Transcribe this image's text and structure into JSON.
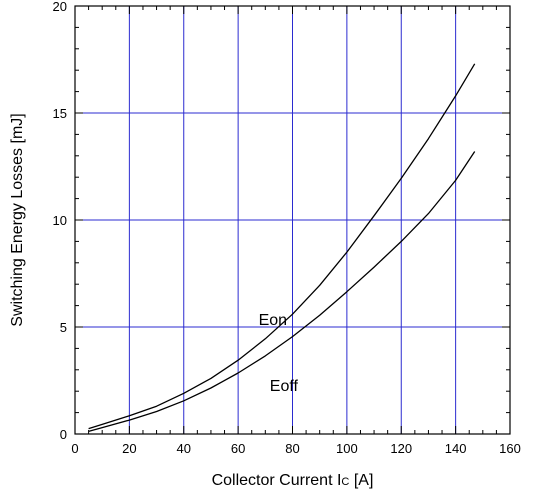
{
  "chart_data": {
    "type": "line",
    "xlabel_main": "Collector Current I",
    "xlabel_sub": "C",
    "xlabel_unit": " [A]",
    "ylabel": "Switching Energy Losses [mJ]",
    "xlim": [
      0,
      160
    ],
    "ylim": [
      0,
      20
    ],
    "xticks": [
      0,
      20,
      40,
      60,
      80,
      100,
      120,
      140,
      160
    ],
    "yticks": [
      0,
      5,
      10,
      15,
      20
    ],
    "grid": true,
    "grid_color": "#2b2bd0",
    "series": [
      {
        "name": "Eon",
        "color": "#000000",
        "x": [
          5,
          10,
          20,
          30,
          40,
          50,
          60,
          70,
          80,
          90,
          100,
          110,
          120,
          130,
          140,
          147
        ],
        "y": [
          0.25,
          0.45,
          0.85,
          1.3,
          1.9,
          2.6,
          3.45,
          4.45,
          5.6,
          6.95,
          8.5,
          10.2,
          11.95,
          13.8,
          15.8,
          17.3
        ]
      },
      {
        "name": "Eoff",
        "color": "#000000",
        "x": [
          5,
          10,
          20,
          30,
          40,
          50,
          60,
          70,
          80,
          90,
          100,
          110,
          120,
          130,
          140,
          147
        ],
        "y": [
          0.12,
          0.3,
          0.65,
          1.05,
          1.55,
          2.15,
          2.85,
          3.65,
          4.55,
          5.55,
          6.65,
          7.8,
          9.0,
          10.3,
          11.85,
          13.2
        ]
      }
    ],
    "annotations": [
      {
        "text": "Eon",
        "x": 78,
        "y": 5.1
      },
      {
        "text": "Eoff",
        "x": 82,
        "y": 2.0
      }
    ]
  }
}
